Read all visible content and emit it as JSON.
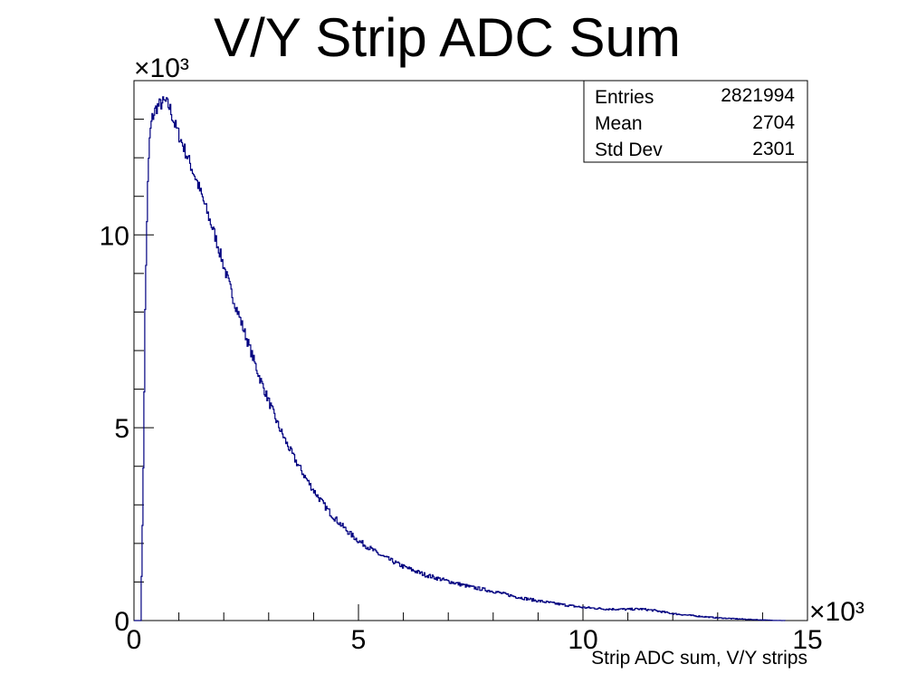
{
  "chart_data": {
    "type": "histogram",
    "title": "V/Y Strip ADC Sum",
    "xlabel": "Strip ADC sum, V/Y strips",
    "ylabel": "",
    "x_multiplier": "×10³",
    "y_multiplier": "×10³",
    "xlim": [
      0,
      15000
    ],
    "ylim": [
      0,
      14000
    ],
    "x_ticks": [
      0,
      5000,
      10000,
      15000
    ],
    "x_tick_labels": [
      "0",
      "5",
      "10",
      "15"
    ],
    "y_ticks": [
      0,
      5000,
      10000
    ],
    "y_tick_labels": [
      "0",
      "5",
      "10"
    ],
    "line_color": "#000080",
    "stats": {
      "entries_label": "Entries",
      "entries": "2821994",
      "mean_label": "Mean",
      "mean": "2704",
      "std_label": "Std Dev",
      "std": "2301"
    },
    "series": [
      {
        "x": [
          0,
          100,
          150,
          200,
          250,
          300,
          350,
          400,
          500,
          600,
          700,
          800,
          900,
          1000,
          1200,
          1400,
          1600,
          1800,
          2000,
          2200,
          2400,
          2600,
          2800,
          3000,
          3200,
          3400,
          3600,
          3800,
          4000,
          4200,
          4400,
          4600,
          4800,
          5000,
          5500,
          6000,
          6500,
          7000,
          7500,
          8000,
          8500,
          9000,
          9500,
          10000,
          10500,
          11000,
          11300,
          11600,
          12000,
          12500,
          13000,
          13500,
          14000,
          14300,
          14500,
          15000
        ],
        "y": [
          0,
          0,
          0,
          3000,
          8000,
          11000,
          12500,
          13000,
          13300,
          13400,
          13450,
          13300,
          12900,
          12600,
          12000,
          11400,
          10700,
          10000,
          9200,
          8400,
          7700,
          7000,
          6300,
          5700,
          5100,
          4600,
          4150,
          3750,
          3380,
          3050,
          2750,
          2500,
          2270,
          2070,
          1690,
          1400,
          1180,
          1020,
          870,
          760,
          620,
          510,
          420,
          340,
          300,
          290,
          300,
          260,
          180,
          120,
          70,
          40,
          15,
          5,
          0,
          0
        ]
      }
    ]
  }
}
